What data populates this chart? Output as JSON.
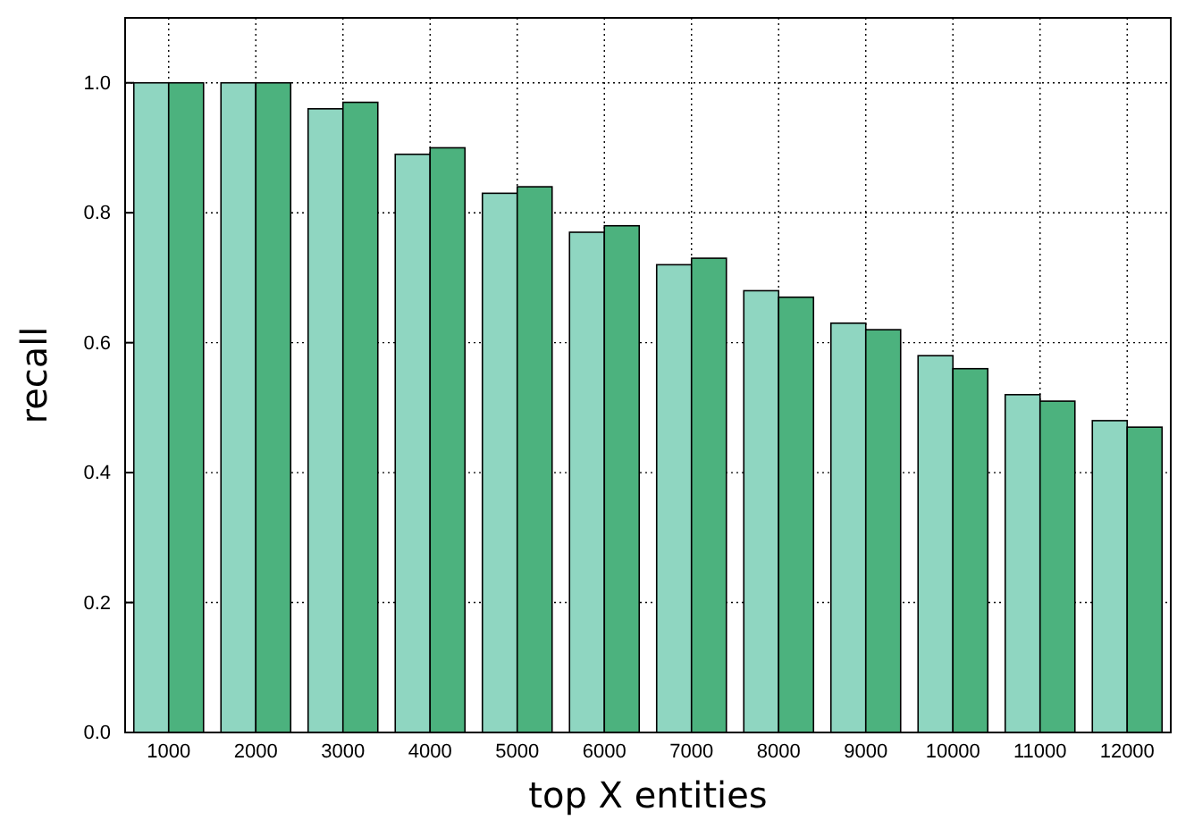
{
  "chart_data": {
    "type": "bar",
    "xlabel": "top X entities",
    "ylabel": "recall",
    "categories": [
      "1000",
      "2000",
      "3000",
      "4000",
      "5000",
      "6000",
      "7000",
      "8000",
      "9000",
      "10000",
      "11000",
      "12000"
    ],
    "series": [
      {
        "color": "#8fd6c1",
        "values": [
          1.0,
          1.0,
          0.96,
          0.89,
          0.83,
          0.77,
          0.72,
          0.68,
          0.63,
          0.58,
          0.52,
          0.48
        ]
      },
      {
        "color": "#4cb27e",
        "values": [
          1.0,
          1.0,
          0.97,
          0.9,
          0.84,
          0.78,
          0.73,
          0.67,
          0.62,
          0.56,
          0.51,
          0.47
        ]
      }
    ],
    "ylim": [
      0,
      1.1
    ],
    "yticks": [
      {
        "value": 0,
        "label": "0.0"
      },
      {
        "value": 0.2,
        "label": "0.2"
      },
      {
        "value": 0.4,
        "label": "0.4"
      },
      {
        "value": 0.6,
        "label": "0.6"
      },
      {
        "value": 0.8,
        "label": "0.8"
      },
      {
        "value": 1.0,
        "label": "1.0"
      }
    ],
    "grid": true,
    "legend": false
  }
}
